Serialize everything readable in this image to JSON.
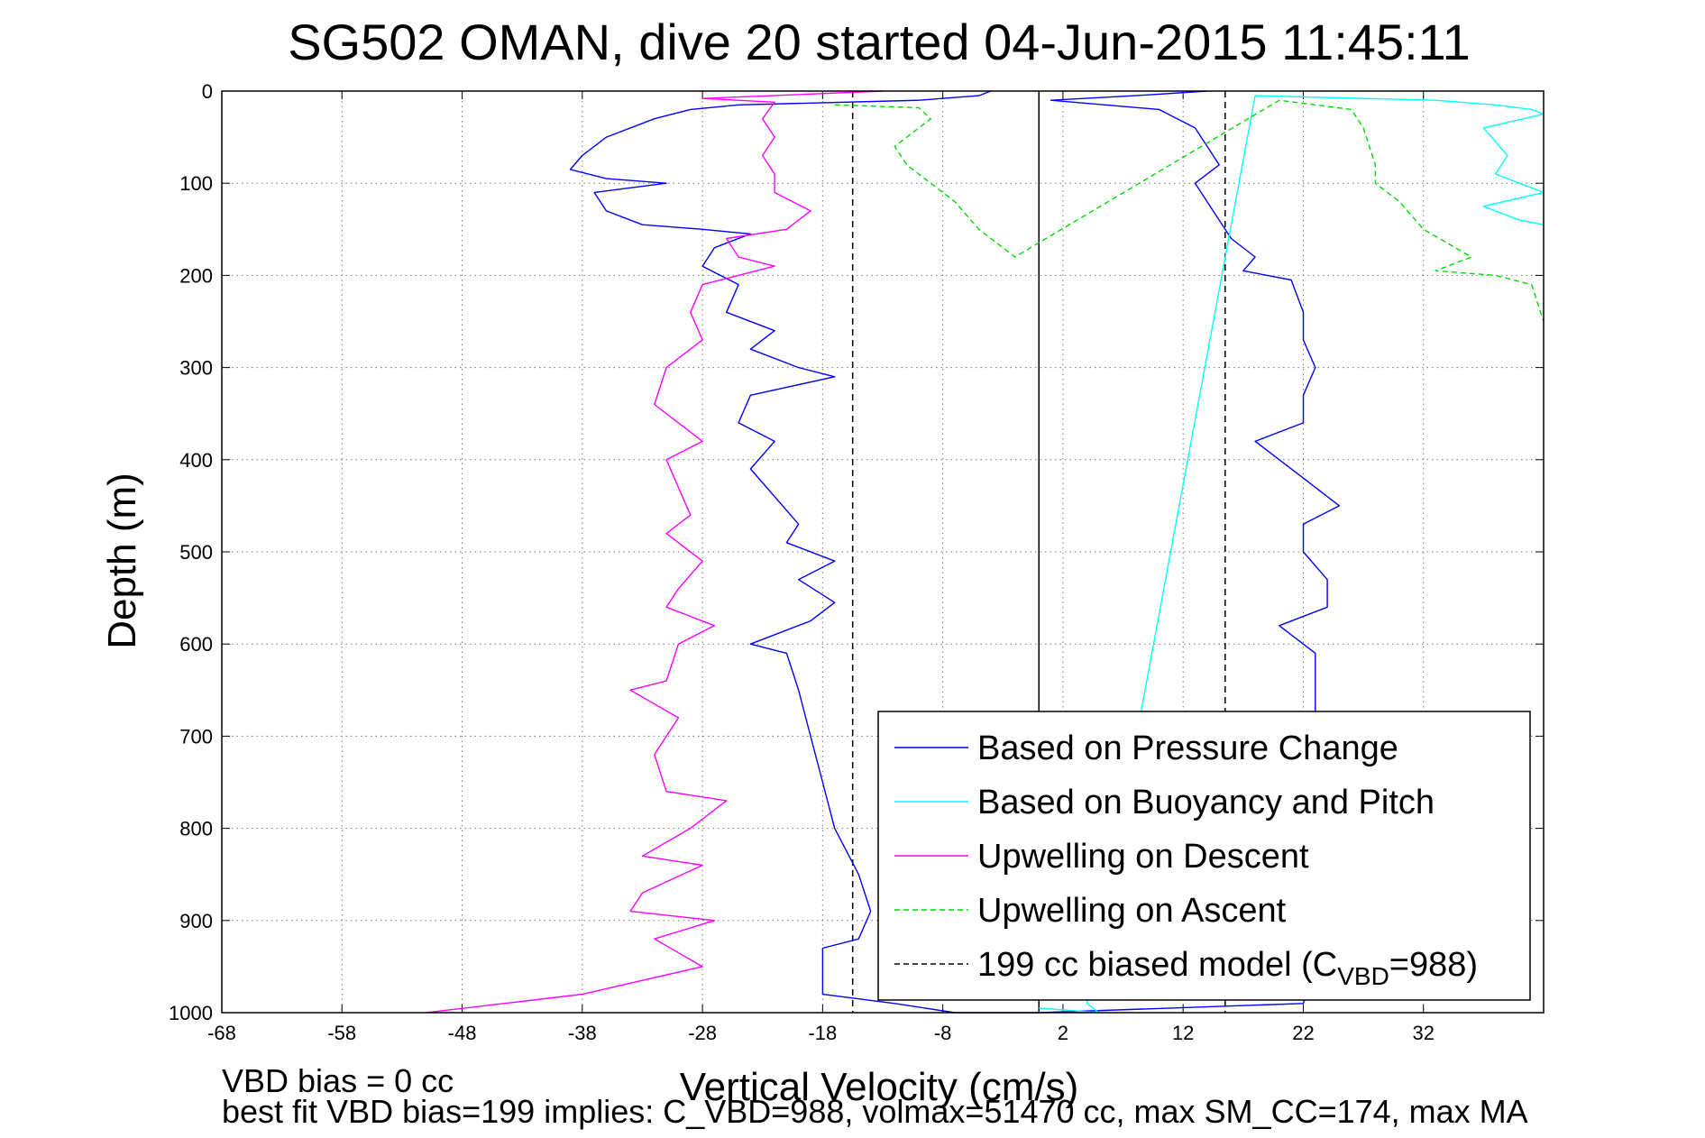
{
  "chart_data": {
    "type": "line",
    "title": "SG502 OMAN, dive 20 started 04-Jun-2015 11:45:11",
    "xlabel": "Vertical Velocity (cm/s)",
    "ylabel": "Depth (m)",
    "xlim": [
      -68,
      42
    ],
    "ylim": [
      0,
      1000
    ],
    "y_reversed": true,
    "xticks": [
      -68,
      -58,
      -48,
      -38,
      -28,
      -18,
      -8,
      2,
      12,
      22,
      32
    ],
    "yticks": [
      0,
      100,
      200,
      300,
      400,
      500,
      600,
      700,
      800,
      900,
      1000
    ],
    "grid": true,
    "legend_position": "bottom-right",
    "reference_lines": [
      {
        "type": "solid",
        "x": 0,
        "color": "#000000"
      },
      {
        "type": "dashed",
        "x": -15.5,
        "color": "#000000"
      },
      {
        "type": "dashed",
        "x": 15.5,
        "color": "#000000"
      }
    ],
    "series": [
      {
        "name": "Based on Pressure Change",
        "color": "#0000ff",
        "style": "solid",
        "points": [
          [
            -4,
            0
          ],
          [
            -5,
            5
          ],
          [
            -10,
            10
          ],
          [
            -25,
            15
          ],
          [
            -29,
            20
          ],
          [
            -32,
            30
          ],
          [
            -36,
            50
          ],
          [
            -38,
            70
          ],
          [
            -39,
            85
          ],
          [
            -36,
            95
          ],
          [
            -31,
            100
          ],
          [
            -37,
            110
          ],
          [
            -36,
            130
          ],
          [
            -33,
            145
          ],
          [
            -28,
            150
          ],
          [
            -24,
            155
          ],
          [
            -27,
            170
          ],
          [
            -28,
            190
          ],
          [
            -25,
            210
          ],
          [
            -26,
            240
          ],
          [
            -22,
            260
          ],
          [
            -24,
            280
          ],
          [
            -20,
            300
          ],
          [
            -17,
            310
          ],
          [
            -24,
            330
          ],
          [
            -25,
            360
          ],
          [
            -22,
            380
          ],
          [
            -24,
            410
          ],
          [
            -22,
            440
          ],
          [
            -20,
            470
          ],
          [
            -21,
            490
          ],
          [
            -17,
            510
          ],
          [
            -20,
            530
          ],
          [
            -17,
            555
          ],
          [
            -19,
            575
          ],
          [
            -24,
            600
          ],
          [
            -21,
            610
          ],
          [
            -20,
            650
          ],
          [
            -19,
            700
          ],
          [
            -18,
            750
          ],
          [
            -17,
            800
          ],
          [
            -15,
            850
          ],
          [
            -14,
            890
          ],
          [
            -15,
            920
          ],
          [
            -18,
            930
          ],
          [
            -18,
            960
          ],
          [
            -18,
            980
          ],
          [
            -12,
            990
          ],
          [
            -7,
            1000
          ],
          [
            0,
            1000
          ],
          [
            22,
            990
          ],
          [
            23,
            950
          ],
          [
            23,
            900
          ],
          [
            23,
            850
          ],
          [
            23,
            800
          ],
          [
            23,
            760
          ],
          [
            23,
            720
          ],
          [
            23,
            680
          ],
          [
            23,
            640
          ],
          [
            23,
            610
          ],
          [
            20,
            580
          ],
          [
            24,
            560
          ],
          [
            24,
            530
          ],
          [
            22,
            500
          ],
          [
            22,
            470
          ],
          [
            25,
            450
          ],
          [
            22,
            420
          ],
          [
            18,
            380
          ],
          [
            22,
            360
          ],
          [
            22,
            330
          ],
          [
            23,
            300
          ],
          [
            22,
            270
          ],
          [
            22,
            240
          ],
          [
            21,
            205
          ],
          [
            17,
            195
          ],
          [
            18,
            180
          ],
          [
            16,
            160
          ],
          [
            15,
            140
          ],
          [
            14,
            120
          ],
          [
            13,
            100
          ],
          [
            15,
            80
          ],
          [
            14,
            60
          ],
          [
            13,
            40
          ],
          [
            10,
            20
          ],
          [
            1,
            10
          ],
          [
            8,
            5
          ],
          [
            14,
            0
          ]
        ]
      },
      {
        "name": "Based on Buoyancy and Pitch",
        "color": "#00ffff",
        "style": "solid",
        "points": [
          [
            0,
            995
          ],
          [
            5,
            1000
          ],
          [
            4,
            990
          ],
          [
            18,
            5
          ],
          [
            33,
            10
          ],
          [
            38,
            15
          ],
          [
            41,
            20
          ],
          [
            42,
            25
          ],
          [
            37,
            40
          ],
          [
            39,
            70
          ],
          [
            38,
            90
          ],
          [
            42,
            110
          ],
          [
            37,
            125
          ],
          [
            40,
            140
          ],
          [
            42,
            145
          ]
        ]
      },
      {
        "name": "Upwelling on Descent",
        "color": "#ff00ff",
        "style": "solid",
        "points": [
          [
            -13,
            0
          ],
          [
            -28,
            8
          ],
          [
            -22,
            12
          ],
          [
            -23,
            30
          ],
          [
            -22,
            50
          ],
          [
            -23,
            70
          ],
          [
            -22,
            90
          ],
          [
            -22,
            110
          ],
          [
            -19,
            130
          ],
          [
            -21,
            150
          ],
          [
            -26,
            160
          ],
          [
            -25,
            180
          ],
          [
            -22,
            190
          ],
          [
            -28,
            210
          ],
          [
            -29,
            240
          ],
          [
            -28,
            270
          ],
          [
            -31,
            300
          ],
          [
            -32,
            340
          ],
          [
            -30,
            360
          ],
          [
            -28,
            380
          ],
          [
            -31,
            400
          ],
          [
            -30,
            430
          ],
          [
            -29,
            460
          ],
          [
            -31,
            480
          ],
          [
            -28,
            510
          ],
          [
            -30,
            540
          ],
          [
            -31,
            560
          ],
          [
            -27,
            580
          ],
          [
            -30,
            600
          ],
          [
            -31,
            640
          ],
          [
            -34,
            650
          ],
          [
            -30,
            680
          ],
          [
            -32,
            720
          ],
          [
            -31,
            760
          ],
          [
            -26,
            770
          ],
          [
            -29,
            800
          ],
          [
            -33,
            830
          ],
          [
            -28,
            840
          ],
          [
            -33,
            870
          ],
          [
            -34,
            890
          ],
          [
            -27,
            900
          ],
          [
            -32,
            920
          ],
          [
            -28,
            950
          ],
          [
            -38,
            980
          ],
          [
            -51,
            1000
          ]
        ]
      },
      {
        "name": "Upwelling on Ascent",
        "color": "#00dd00",
        "style": "dashed",
        "points": [
          [
            -17,
            15
          ],
          [
            -10,
            18
          ],
          [
            -9,
            30
          ],
          [
            -12,
            60
          ],
          [
            -11,
            80
          ],
          [
            -9,
            100
          ],
          [
            -7,
            120
          ],
          [
            -5,
            150
          ],
          [
            -3,
            170
          ],
          [
            -2,
            180
          ],
          [
            20,
            10
          ],
          [
            26,
            20
          ],
          [
            27,
            40
          ],
          [
            28,
            80
          ],
          [
            28,
            100
          ],
          [
            30,
            120
          ],
          [
            32,
            150
          ],
          [
            36,
            180
          ],
          [
            33,
            195
          ],
          [
            38,
            200
          ],
          [
            41,
            210
          ],
          [
            42,
            250
          ]
        ]
      }
    ],
    "legend_entries": [
      {
        "label": "Based on Pressure Change",
        "color": "#0000ff",
        "style": "solid"
      },
      {
        "label": "Based on Buoyancy and Pitch",
        "color": "#00ffff",
        "style": "solid"
      },
      {
        "label": "Upwelling on Descent",
        "color": "#ff00ff",
        "style": "solid"
      },
      {
        "label": "Upwelling on Ascent",
        "color": "#00dd00",
        "style": "dashed"
      },
      {
        "label_prefix": "199 cc biased model (C",
        "label_sub": "VBD",
        "label_suffix": "=988)",
        "color": "#000000",
        "style": "dashed"
      }
    ],
    "footer": {
      "line1": "VBD bias = 0 cc",
      "line2": "best fit VBD bias=199 implies: C_VBD=988, volmax=51470 cc, max SM_CC=174, max MA"
    }
  }
}
